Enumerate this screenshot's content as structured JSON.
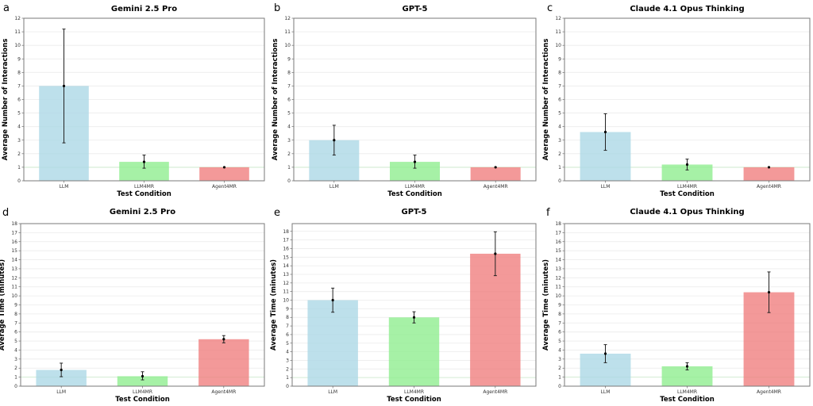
{
  "chart_data": [
    {
      "panel": "a",
      "type": "bar",
      "title": "Gemini 2.5 Pro",
      "xlabel": "Test Condition",
      "ylabel": "Average Number of Interactions",
      "categories": [
        "LLM",
        "LLM4MR",
        "Agent4MR"
      ],
      "values": [
        7.0,
        1.4,
        1.0
      ],
      "error_low": [
        2.8,
        0.93,
        1.0
      ],
      "error_high": [
        11.2,
        1.9,
        1.0
      ],
      "colors": [
        "#add8e6",
        "#90ee90",
        "#f08080"
      ],
      "ylim": [
        0,
        12
      ],
      "yticks": [
        0,
        1,
        2,
        3,
        4,
        5,
        6,
        7,
        8,
        9,
        10,
        11,
        12
      ],
      "reference_line": 1,
      "grid": true
    },
    {
      "panel": "b",
      "type": "bar",
      "title": "GPT-5",
      "xlabel": "Test Condition",
      "ylabel": "Average Number of Interactions",
      "categories": [
        "LLM",
        "LLM4MR",
        "Agent4MR"
      ],
      "values": [
        3.0,
        1.4,
        1.0
      ],
      "error_low": [
        1.9,
        0.93,
        1.0
      ],
      "error_high": [
        4.1,
        1.9,
        1.0
      ],
      "colors": [
        "#add8e6",
        "#90ee90",
        "#f08080"
      ],
      "ylim": [
        0,
        12
      ],
      "yticks": [
        0,
        1,
        2,
        3,
        4,
        5,
        6,
        7,
        8,
        9,
        10,
        11,
        12
      ],
      "reference_line": 1,
      "grid": true
    },
    {
      "panel": "c",
      "type": "bar",
      "title": "Claude 4.1 Opus Thinking",
      "xlabel": "Test Condition",
      "ylabel": "Average Number of Interactions",
      "categories": [
        "LLM",
        "LLM4MR",
        "Agent4MR"
      ],
      "values": [
        3.6,
        1.2,
        1.0
      ],
      "error_low": [
        2.25,
        0.8,
        1.0
      ],
      "error_high": [
        4.95,
        1.6,
        1.0
      ],
      "colors": [
        "#add8e6",
        "#90ee90",
        "#f08080"
      ],
      "ylim": [
        0,
        12
      ],
      "yticks": [
        0,
        1,
        2,
        3,
        4,
        5,
        6,
        7,
        8,
        9,
        10,
        11,
        12
      ],
      "reference_line": 1,
      "grid": true
    },
    {
      "panel": "d",
      "type": "bar",
      "title": "Gemini 2.5 Pro",
      "xlabel": "Test Condition",
      "ylabel": "Average Time (minutes)",
      "categories": [
        "LLM",
        "LLM4MR",
        "Agent4MR"
      ],
      "values": [
        1.8,
        1.1,
        5.2
      ],
      "error_low": [
        1.05,
        0.7,
        4.8
      ],
      "error_high": [
        2.55,
        1.6,
        5.6
      ],
      "colors": [
        "#add8e6",
        "#90ee90",
        "#f08080"
      ],
      "ylim": [
        0,
        18
      ],
      "yticks": [
        0,
        1,
        2,
        3,
        4,
        5,
        6,
        7,
        8,
        9,
        10,
        11,
        12,
        13,
        14,
        15,
        16,
        17,
        18
      ],
      "reference_line": 1,
      "grid": true
    },
    {
      "panel": "e",
      "type": "bar",
      "title": "GPT-5",
      "xlabel": "Test Condition",
      "ylabel": "Average Time (minutes)",
      "categories": [
        "LLM",
        "LLM4MR",
        "Agent4MR"
      ],
      "values": [
        10.0,
        8.0,
        15.4
      ],
      "error_low": [
        8.6,
        7.35,
        12.85
      ],
      "error_high": [
        11.4,
        8.65,
        17.95
      ],
      "colors": [
        "#add8e6",
        "#90ee90",
        "#f08080"
      ],
      "ylim": [
        0,
        18.9
      ],
      "yticks": [
        0,
        1,
        2,
        3,
        4,
        5,
        6,
        7,
        8,
        9,
        10,
        11,
        12,
        13,
        14,
        15,
        16,
        17,
        18
      ],
      "reference_line": 1,
      "grid": true
    },
    {
      "panel": "f",
      "type": "bar",
      "title": "Claude 4.1 Opus Thinking",
      "xlabel": "Test Condition",
      "ylabel": "Average Time (minutes)",
      "categories": [
        "LLM",
        "LLM4MR",
        "Agent4MR"
      ],
      "values": [
        3.6,
        2.2,
        10.4
      ],
      "error_low": [
        2.6,
        1.8,
        8.15
      ],
      "error_high": [
        4.6,
        2.6,
        12.65
      ],
      "colors": [
        "#add8e6",
        "#90ee90",
        "#f08080"
      ],
      "ylim": [
        0,
        18
      ],
      "yticks": [
        0,
        1,
        2,
        3,
        4,
        5,
        6,
        7,
        8,
        9,
        10,
        11,
        12,
        13,
        14,
        15,
        16,
        17,
        18
      ],
      "reference_line": 1,
      "grid": true
    }
  ]
}
